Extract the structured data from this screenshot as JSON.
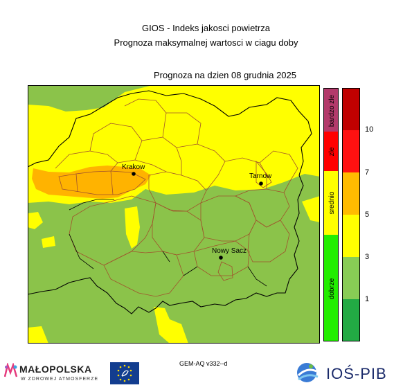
{
  "header": {
    "title": "GIOS - Indeks jakosci powietrza",
    "subtitle": "Prognoza maksymalnej wartosci w ciagu doby",
    "forecast_date": "Prognoza na dzien  08 grudnia 2025"
  },
  "map": {
    "cities": [
      {
        "name": "Krakow"
      },
      {
        "name": "Tarnow"
      },
      {
        "name": "Nowy Sacz"
      }
    ]
  },
  "legend": {
    "categories": [
      {
        "label": "bardzo zle",
        "color": "#b33a6b"
      },
      {
        "label": "zle",
        "color": "#ff0000"
      },
      {
        "label": "srednio",
        "color": "#ffff00"
      },
      {
        "label": "dobrze",
        "color": "#22ee00"
      }
    ],
    "scale_colors": [
      "#22aa44",
      "#88cc55",
      "#ffff00",
      "#ffbb00",
      "#ff1111",
      "#c00000"
    ],
    "ticks": [
      "1",
      "3",
      "5",
      "7",
      "10"
    ]
  },
  "colors": {
    "good": "#8bc34a",
    "moderate": "#ffff00",
    "elevated": "#ffb300",
    "border_district": "#a0522d",
    "border_region": "#000000"
  },
  "footer": {
    "model": "GEM-AQ v332--d",
    "malopolska_name": "MAŁOPOLSKA",
    "malopolska_tagline": "W ZDROWEJ ATMOSFERZE",
    "ios_name": "IOŚ-PIB"
  }
}
